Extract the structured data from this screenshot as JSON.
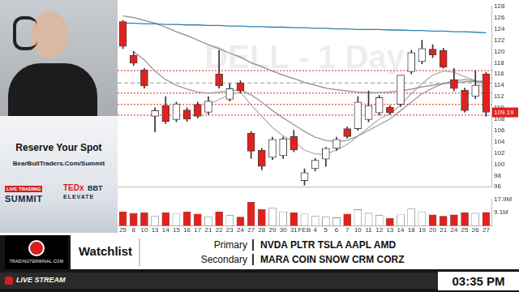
{
  "chart_data": [
    {
      "type": "candlestick",
      "title": "DELL - 1 Day",
      "categories": [
        "25",
        "8",
        "10",
        "13",
        "14",
        "15",
        "16",
        "17",
        "21",
        "22",
        "23",
        "24",
        "27",
        "28",
        "29",
        "30",
        "31",
        "FEB",
        "4",
        "5",
        "6",
        "7",
        "10",
        "11",
        "12",
        "13",
        "14",
        "18",
        "19",
        "20",
        "21",
        "24",
        "25",
        "26",
        "27"
      ],
      "open": [
        125.3,
        119.3,
        116.7,
        108.5,
        110.4,
        107.9,
        109.6,
        110.6,
        109.2,
        116.0,
        111.5,
        114.4,
        105.5,
        102.5,
        101.2,
        101.5,
        104.9,
        97.1,
        99.2,
        100.9,
        102.8,
        106.3,
        106.3,
        107.9,
        109.1,
        110.1,
        110.6,
        116.4,
        118.2,
        120.4,
        120.2,
        115.0,
        113.1,
        112.0,
        116.0
      ],
      "high": [
        125.5,
        120.0,
        117.0,
        110.0,
        112.0,
        111.0,
        110.0,
        111.0,
        112.0,
        120.2,
        114.3,
        114.8,
        105.8,
        102.8,
        104.8,
        104.8,
        106.0,
        99.2,
        101.0,
        103.0,
        104.8,
        106.6,
        112.0,
        113.0,
        112.2,
        110.4,
        112.0,
        120.2,
        122.0,
        121.2,
        120.6,
        117.0,
        113.5,
        116.6,
        116.3
      ],
      "low": [
        120.5,
        117.5,
        113.5,
        105.7,
        107.2,
        107.5,
        107.6,
        108.2,
        108.8,
        113.5,
        111.2,
        112.6,
        101.0,
        99.0,
        100.8,
        101.0,
        102.2,
        96.3,
        98.8,
        99.6,
        102.4,
        104.6,
        106.0,
        107.5,
        108.7,
        108.8,
        110.2,
        116.0,
        117.8,
        118.9,
        117.0,
        113.0,
        109.2,
        111.6,
        108.5
      ],
      "close": [
        120.9,
        117.9,
        113.9,
        109.5,
        107.6,
        110.7,
        108.0,
        108.5,
        111.2,
        113.9,
        113.4,
        113.0,
        102.3,
        99.6,
        104.4,
        104.5,
        102.5,
        98.5,
        100.7,
        102.8,
        104.4,
        104.9,
        111.0,
        110.4,
        111.8,
        109.1,
        115.8,
        119.8,
        120.5,
        119.4,
        117.2,
        113.4,
        109.5,
        114.0,
        109.19
      ],
      "colors": [
        "#e3211c",
        "#e3211c",
        "#e3211c",
        "#ffffff",
        "#e3211c",
        "#ffffff",
        "#e3211c",
        "#e3211c",
        "#ffffff",
        "#e3211c",
        "#ffffff",
        "#e3211c",
        "#e3211c",
        "#e3211c",
        "#ffffff",
        "#ffffff",
        "#e3211c",
        "#ffffff",
        "#ffffff",
        "#ffffff",
        "#ffffff",
        "#e3211c",
        "#ffffff",
        "#ffffff",
        "#ffffff",
        "#e3211c",
        "#ffffff",
        "#ffffff",
        "#ffffff",
        "#e3211c",
        "#e3211c",
        "#e3211c",
        "#e3211c",
        "#ffffff",
        "#e3211c"
      ],
      "series": [
        {
          "color": "#2f7fb0",
          "values": [
            125.0,
            125.0,
            124.9,
            124.9,
            124.8,
            124.8,
            124.7,
            124.7,
            124.6,
            124.6,
            124.5,
            124.5,
            124.4,
            124.4,
            124.3,
            124.3,
            124.2,
            124.2,
            124.1,
            124.1,
            124.0,
            124.0,
            123.9,
            123.9,
            123.9,
            123.8,
            123.8,
            123.7,
            123.7,
            123.6,
            123.6,
            123.5,
            123.5,
            123.4,
            123.3
          ]
        },
        {
          "color": "#8c8c8c",
          "values": [
            126.3,
            126.0,
            125.5,
            125.0,
            124.3,
            123.5,
            122.8,
            122.0,
            121.2,
            120.5,
            119.7,
            119.0,
            118.0,
            117.3,
            116.5,
            115.8,
            115.2,
            114.5,
            114.0,
            113.5,
            113.2,
            113.0,
            112.8,
            112.7,
            112.7,
            112.8,
            113.0,
            113.3,
            113.7,
            114.0,
            114.3,
            114.5,
            114.6,
            114.7,
            114.7
          ]
        },
        {
          "color": "#9a9a9a",
          "values": [
            null,
            120.0,
            118.5,
            116.5,
            115.0,
            114.0,
            113.3,
            112.8,
            112.6,
            112.8,
            113.0,
            113.2,
            112.3,
            111.0,
            109.5,
            108.2,
            107.0,
            105.8,
            104.8,
            104.2,
            104.0,
            104.2,
            105.0,
            106.0,
            107.0,
            108.0,
            109.5,
            111.0,
            112.5,
            113.5,
            114.3,
            114.8,
            115.0,
            114.8,
            114.2
          ]
        },
        {
          "color": "#b0b0b0",
          "values": [
            null,
            null,
            null,
            null,
            null,
            null,
            null,
            null,
            110.5,
            111.5,
            112.3,
            112.8,
            110.5,
            108.5,
            106.5,
            105.0,
            104.0,
            102.5,
            101.8,
            101.8,
            102.5,
            103.5,
            105.0,
            106.5,
            108.0,
            109.0,
            110.5,
            112.5,
            114.3,
            115.8,
            116.5,
            116.3,
            115.5,
            114.8,
            113.2
          ]
        }
      ],
      "levels": [
        {
          "value": 116.6,
          "color": "#e3211c",
          "line_style": "dotted"
        },
        {
          "value": 114.4,
          "color": "#9a9a9a",
          "line_style": "dashed"
        },
        {
          "value": 112.6,
          "color": "#e3211c",
          "line_style": "dotted"
        },
        {
          "value": 110.6,
          "color": "#e3211c",
          "line_style": "dotted"
        },
        {
          "value": 108.7,
          "color": "#e3211c",
          "line_style": "dotted"
        }
      ],
      "last_price": {
        "value": 109.19,
        "label": "109.19"
      },
      "ylim": [
        96,
        128
      ],
      "yticks": [
        96,
        98,
        100,
        102,
        104,
        106,
        108,
        110,
        112,
        114,
        116,
        118,
        120,
        122,
        124,
        126,
        128
      ],
      "grid": false,
      "tick_labels": "y"
    },
    {
      "type": "bar",
      "categories": [
        "25",
        "8",
        "10",
        "13",
        "14",
        "15",
        "16",
        "17",
        "21",
        "22",
        "23",
        "24",
        "27",
        "28",
        "29",
        "30",
        "31",
        "FEB",
        "4",
        "5",
        "6",
        "7",
        "10",
        "11",
        "12",
        "13",
        "14",
        "18",
        "19",
        "20",
        "21",
        "24",
        "25",
        "26",
        "27"
      ],
      "values": [
        9.5,
        8.5,
        9.0,
        6.5,
        9.0,
        8.0,
        9.5,
        8.0,
        6.0,
        9.5,
        7.0,
        6.0,
        16.0,
        11.0,
        12.0,
        9.5,
        9.0,
        8.0,
        6.5,
        6.0,
        5.5,
        8.0,
        11.0,
        8.5,
        7.0,
        5.0,
        7.5,
        11.5,
        9.5,
        7.5,
        6.5,
        7.5,
        9.0,
        8.5,
        9.1
      ],
      "colors": [
        "#e3211c",
        "#e3211c",
        "#e3211c",
        "#ffffff",
        "#e3211c",
        "#ffffff",
        "#e3211c",
        "#e3211c",
        "#ffffff",
        "#e3211c",
        "#ffffff",
        "#e3211c",
        "#e3211c",
        "#e3211c",
        "#ffffff",
        "#ffffff",
        "#e3211c",
        "#ffffff",
        "#ffffff",
        "#ffffff",
        "#ffffff",
        "#e3211c",
        "#ffffff",
        "#ffffff",
        "#ffffff",
        "#e3211c",
        "#ffffff",
        "#ffffff",
        "#ffffff",
        "#e3211c",
        "#e3211c",
        "#e3211c",
        "#e3211c",
        "#ffffff",
        "#e3211c"
      ],
      "ylim": [
        0,
        17.9
      ],
      "yticks": [
        {
          "value": 9.1,
          "label": "9.1M"
        },
        {
          "value": 17.9,
          "label": "17.9M"
        }
      ],
      "grid": false,
      "tick_labels": true
    }
  ],
  "overlay": {
    "promo": {
      "headline": "Reserve Your Spot",
      "url": "BearBullTraders.Com/Summit",
      "badge_left": [
        "LIVE TRADING",
        "SUMMIT"
      ],
      "badge_right": [
        "TEDx",
        "BBT",
        "ELEVATE"
      ]
    },
    "logo": "TRADINGTERMINAL.COM",
    "watchlist": {
      "title": "Watchlist",
      "rows": [
        {
          "label": "Primary",
          "symbols": "NVDA PLTR TSLA AAPL AMD"
        },
        {
          "label": "Secondary",
          "symbols": "MARA COIN SNOW CRM CORZ"
        }
      ]
    },
    "live": "LIVE STREAM",
    "time": "03:35 PM"
  }
}
